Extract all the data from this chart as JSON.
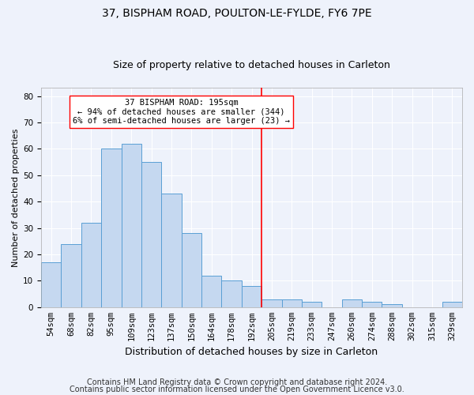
{
  "title1": "37, BISPHAM ROAD, POULTON-LE-FYLDE, FY6 7PE",
  "title2": "Size of property relative to detached houses in Carleton",
  "xlabel": "Distribution of detached houses by size in Carleton",
  "ylabel": "Number of detached properties",
  "footnote1": "Contains HM Land Registry data © Crown copyright and database right 2024.",
  "footnote2": "Contains public sector information licensed under the Open Government Licence v3.0.",
  "categories": [
    "54sqm",
    "68sqm",
    "82sqm",
    "95sqm",
    "109sqm",
    "123sqm",
    "137sqm",
    "150sqm",
    "164sqm",
    "178sqm",
    "192sqm",
    "205sqm",
    "219sqm",
    "233sqm",
    "247sqm",
    "260sqm",
    "274sqm",
    "288sqm",
    "302sqm",
    "315sqm",
    "329sqm"
  ],
  "values": [
    17,
    24,
    32,
    60,
    62,
    55,
    43,
    28,
    12,
    10,
    8,
    3,
    3,
    2,
    0,
    3,
    2,
    1,
    0,
    0,
    2
  ],
  "bar_color": "#c5d8f0",
  "bar_edge_color": "#5a9fd4",
  "marker_line_color": "red",
  "annotation_line1": "37 BISPHAM ROAD: 195sqm",
  "annotation_line2": "← 94% of detached houses are smaller (344)",
  "annotation_line3": "6% of semi-detached houses are larger (23) →",
  "annotation_box_edge": "red",
  "ylim": [
    0,
    83
  ],
  "background_color": "#eef2fb",
  "grid_color": "#ffffff",
  "title1_fontsize": 10,
  "title2_fontsize": 9,
  "xlabel_fontsize": 9,
  "ylabel_fontsize": 8,
  "tick_fontsize": 7.5,
  "footnote_fontsize": 7
}
